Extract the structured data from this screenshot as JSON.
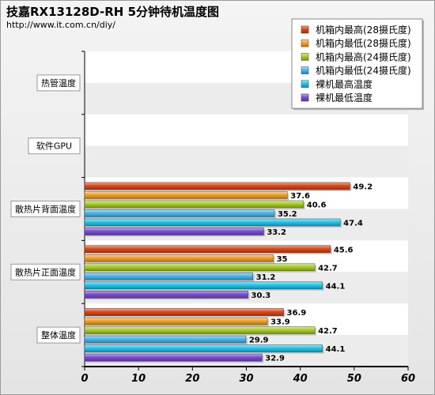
{
  "chart_data": {
    "type": "bar",
    "orientation": "horizontal",
    "title": "技嘉RX13128D-RH 5分钟待机温度图",
    "subtitle": "http://www.it.com.cn/diy/",
    "categories": [
      "热管温度",
      "软件GPU",
      "散热片背面温度",
      "散热片正面温度",
      "整体温度"
    ],
    "series": [
      {
        "name": "机箱内最高(28摄氏度)",
        "color": "#d84a1b",
        "values": [
          null,
          null,
          49.2,
          45.6,
          36.9
        ]
      },
      {
        "name": "机箱内最低(28摄氏度)",
        "color": "#f0a22e",
        "values": [
          null,
          null,
          37.6,
          35,
          33.9
        ]
      },
      {
        "name": "机箱内最高(24摄氏度)",
        "color": "#a8cc2a",
        "values": [
          null,
          null,
          40.6,
          42.7,
          42.7
        ]
      },
      {
        "name": "机箱内最低(24摄氏度)",
        "color": "#4fb6e6",
        "values": [
          null,
          null,
          35.2,
          31.2,
          29.9
        ]
      },
      {
        "name": "裸机最高温度",
        "color": "#27c3ea",
        "values": [
          null,
          null,
          47.4,
          44.1,
          44.1
        ]
      },
      {
        "name": "裸机最低温度",
        "color": "#7b4fd0",
        "values": [
          null,
          null,
          33.2,
          30.3,
          32.9
        ]
      }
    ],
    "value_labels": [
      [],
      [],
      [
        "49.2",
        "37.6",
        "40.6",
        "35.2",
        "47.4",
        "33.2"
      ],
      [
        "45.6",
        "35",
        "42.7",
        "31.2",
        "44.1",
        "30.3"
      ],
      [
        "36.9",
        "33.9",
        "42.7",
        "29.9",
        "44.1",
        "32.9"
      ]
    ],
    "xlim": [
      0,
      60
    ],
    "xticks": [
      "0",
      "10",
      "20",
      "30",
      "40",
      "50",
      "60"
    ],
    "xlabel": "",
    "ylabel": "",
    "grid": false,
    "legend_position": "top-right"
  }
}
